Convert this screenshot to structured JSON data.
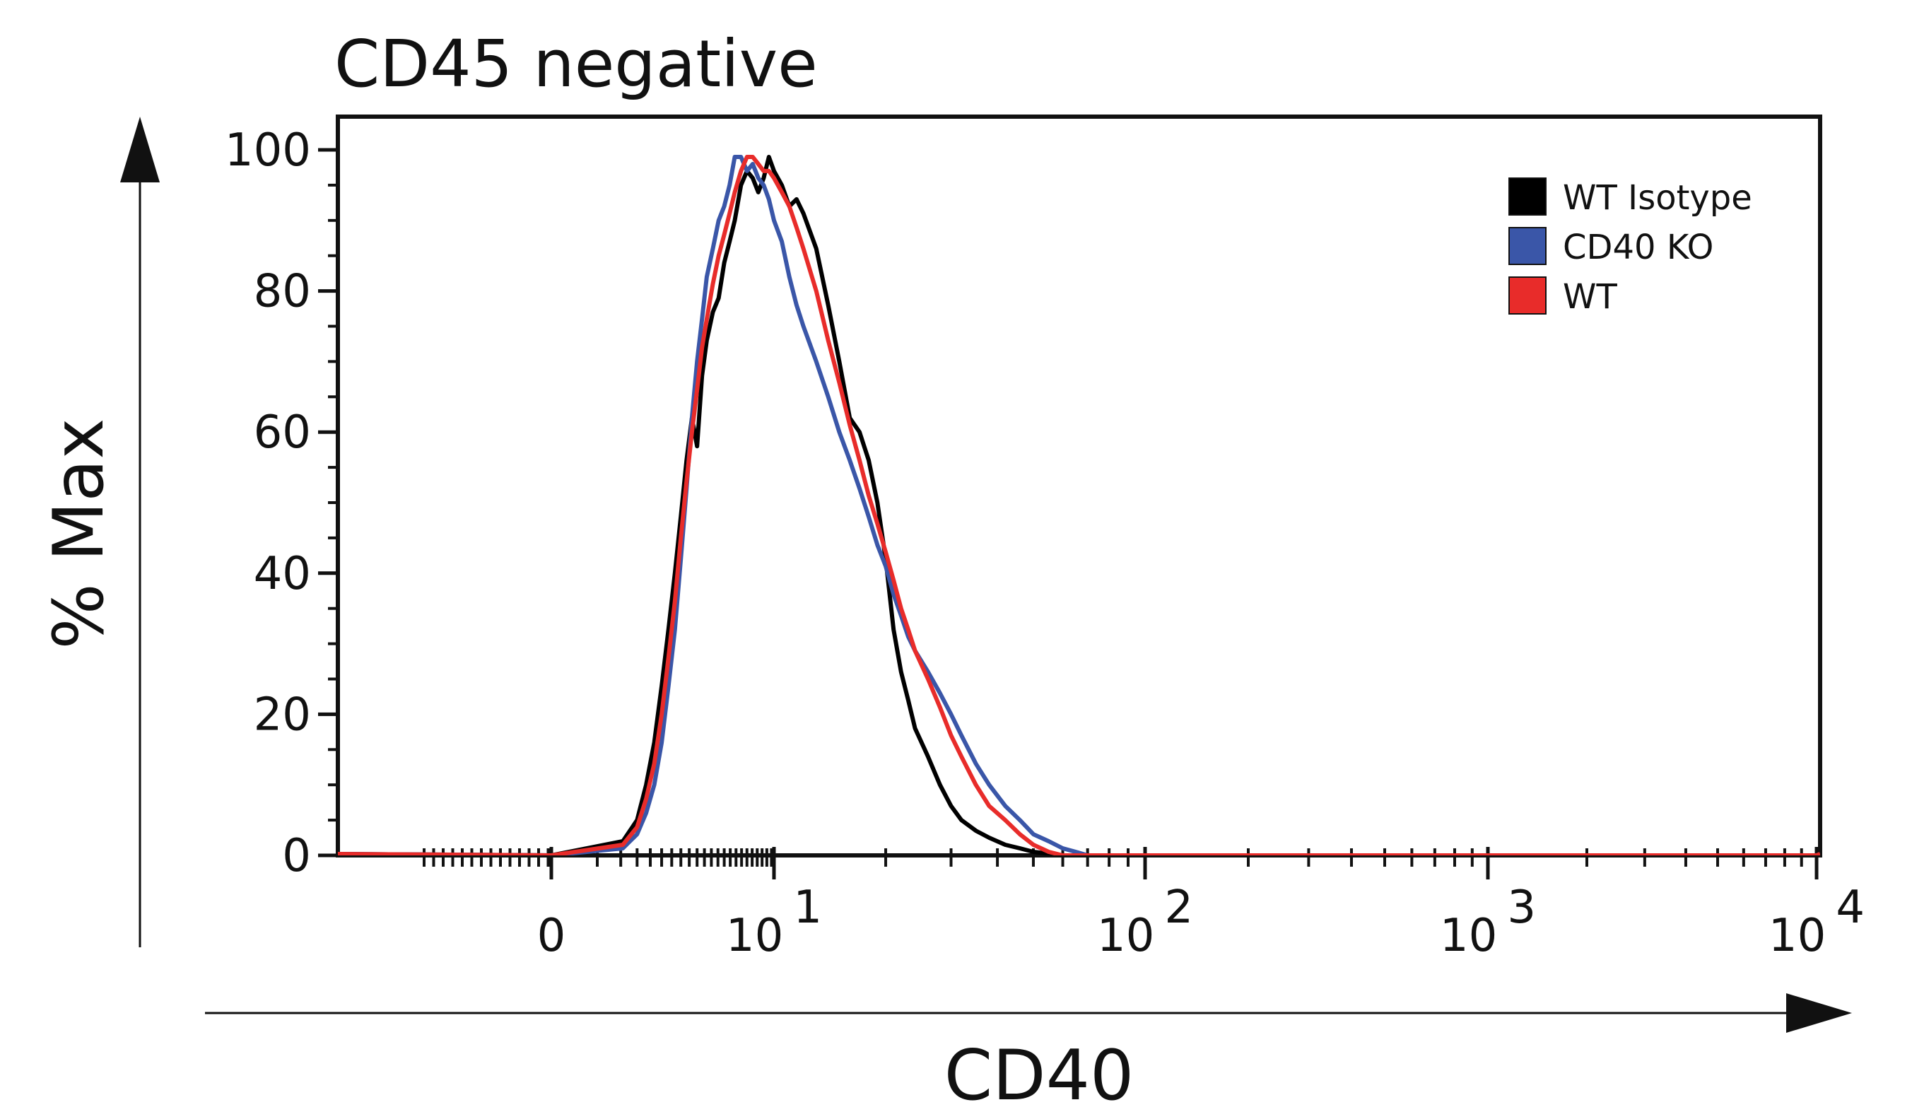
{
  "chart_data": {
    "type": "line",
    "title": "CD45 negative",
    "xlabel": "CD40",
    "ylabel": "% Max",
    "x_scale": "biexponential (linear near 0, log above)",
    "xlim": [
      -4,
      10000
    ],
    "ylim": [
      0,
      100
    ],
    "grid": false,
    "legend_position": "top-right",
    "y_ticks": [
      "0",
      "20",
      "40",
      "60",
      "80",
      "100"
    ],
    "x_ticks": [
      {
        "value": 0,
        "base": "0",
        "exp": ""
      },
      {
        "value": 10,
        "base": "10",
        "exp": "1"
      },
      {
        "value": 100,
        "base": "10",
        "exp": "2"
      },
      {
        "value": 1000,
        "base": "10",
        "exp": "3"
      },
      {
        "value": 10000,
        "base": "10",
        "exp": "4"
      }
    ],
    "series": [
      {
        "name": "WT Isotype",
        "color": "#000000",
        "x": [
          0,
          0.8,
          1.2,
          1.5,
          1.8,
          2.1,
          2.4,
          2.7,
          3.0,
          3.3,
          3.6,
          3.9,
          4.2,
          4.5,
          4.9,
          5.3,
          5.7,
          6.1,
          6.5,
          7.0,
          7.5,
          8.0,
          8.5,
          9.0,
          9.5,
          10.0,
          10.5,
          11.0,
          11.5,
          12.0,
          13.0,
          14.0,
          15.0,
          16.0,
          17.0,
          18.0,
          19.0,
          20.0,
          21.0,
          22.0,
          23.0,
          24.0,
          26.0,
          28.0,
          30.0,
          32.0,
          35.0,
          38.0,
          42.0,
          46.0,
          50.0,
          60.0,
          100.0,
          1000.0,
          10000.0
        ],
        "y": [
          0,
          2,
          5,
          10,
          16,
          24,
          32,
          40,
          48,
          56,
          62,
          58,
          68,
          73,
          77,
          79,
          84,
          87,
          90,
          95,
          97,
          96,
          94,
          96,
          99,
          97,
          95,
          92,
          93,
          91,
          86,
          78,
          70,
          62,
          60,
          56,
          50,
          42,
          32,
          26,
          22,
          18,
          14,
          10,
          7,
          5,
          3.5,
          2.5,
          1.5,
          1,
          0.5,
          0,
          0,
          0,
          0
        ]
      },
      {
        "name": "CD40 KO",
        "color": "#3a56a8",
        "x": [
          0,
          0.8,
          1.2,
          1.5,
          1.8,
          2.1,
          2.4,
          2.7,
          3.0,
          3.3,
          3.6,
          3.9,
          4.2,
          4.5,
          4.9,
          5.3,
          5.7,
          6.1,
          6.5,
          7.0,
          7.5,
          8.0,
          8.5,
          9.0,
          9.5,
          10.0,
          10.5,
          11.0,
          11.5,
          12.0,
          13.0,
          14.0,
          15.0,
          16.0,
          17.0,
          18.0,
          19.0,
          20.0,
          21.0,
          22.0,
          23.0,
          24.0,
          26.0,
          28.0,
          30.0,
          32.0,
          35.0,
          38.0,
          42.0,
          46.0,
          50.0,
          55.0,
          60.0,
          65.0,
          70.0,
          100.0,
          1000.0,
          10000.0
        ],
        "y": [
          0,
          1,
          3,
          6,
          10,
          16,
          24,
          32,
          42,
          52,
          62,
          70,
          76,
          82,
          86,
          90,
          92,
          95,
          99,
          99,
          97,
          98,
          96,
          95,
          93,
          90,
          87,
          82,
          78,
          75,
          70,
          65,
          60,
          56,
          52,
          48,
          44,
          41,
          37,
          34,
          31,
          29,
          26,
          23,
          20,
          17,
          13,
          10,
          7,
          5,
          3,
          2,
          1,
          0.5,
          0,
          0,
          0,
          0
        ]
      },
      {
        "name": "WT",
        "color": "#e82c2a",
        "x": [
          0,
          0.8,
          1.2,
          1.5,
          1.8,
          2.1,
          2.4,
          2.7,
          3.0,
          3.3,
          3.6,
          3.9,
          4.2,
          4.5,
          4.9,
          5.3,
          5.7,
          6.1,
          6.5,
          7.0,
          7.5,
          8.0,
          8.5,
          9.0,
          9.5,
          10.0,
          10.5,
          11.0,
          11.5,
          12.0,
          13.0,
          14.0,
          15.0,
          16.0,
          17.0,
          18.0,
          19.0,
          20.0,
          21.0,
          22.0,
          23.0,
          24.0,
          26.0,
          28.0,
          30.0,
          32.0,
          35.0,
          38.0,
          42.0,
          46.0,
          50.0,
          55.0,
          60.0,
          100.0,
          1000.0,
          10000.0
        ],
        "y": [
          0,
          1.5,
          4,
          8,
          13,
          20,
          28,
          36,
          45,
          53,
          60,
          66,
          72,
          76,
          81,
          85,
          88,
          91,
          94,
          97,
          99,
          99,
          98,
          97,
          97,
          96,
          94,
          92,
          89,
          86,
          80,
          73,
          67,
          61,
          56,
          51,
          47,
          43,
          39,
          35,
          32,
          29,
          25,
          21,
          17,
          14,
          10,
          7,
          5,
          3,
          1.5,
          0.5,
          0,
          0,
          0,
          0
        ]
      }
    ]
  }
}
